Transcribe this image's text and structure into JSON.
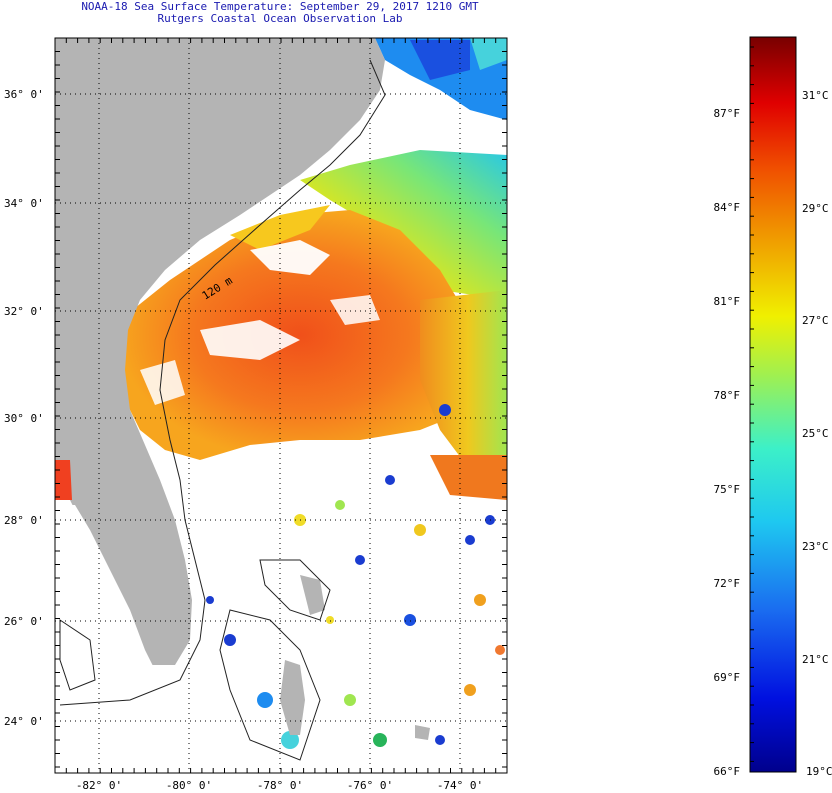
{
  "title": {
    "line1": "NOAA-18 Sea Surface Temperature:  September 29, 2017 1210 GMT",
    "line2": "Rutgers Coastal Ocean Observation Lab"
  },
  "map": {
    "lat_labels": [
      "36° 0'",
      "34° 0'",
      "32° 0'",
      "30° 0'",
      "28° 0'",
      "26° 0'",
      "24° 0'"
    ],
    "lon_labels": [
      "-82° 0'",
      "-80° 0'",
      "-78° 0'",
      "-76° 0'",
      "-74° 0'"
    ],
    "isobath_label": "120 m"
  },
  "colorbar": {
    "f_labels": [
      "87°F",
      "84°F",
      "81°F",
      "78°F",
      "75°F",
      "72°F",
      "69°F",
      "66°F"
    ],
    "c_labels": [
      "31°C",
      "29°C",
      "27°C",
      "25°C",
      "23°C",
      "21°C",
      "19°C"
    ]
  },
  "colors": {
    "land": "#b4b4b4",
    "cloud": "#ffffff",
    "title": "#1a1ab0"
  }
}
